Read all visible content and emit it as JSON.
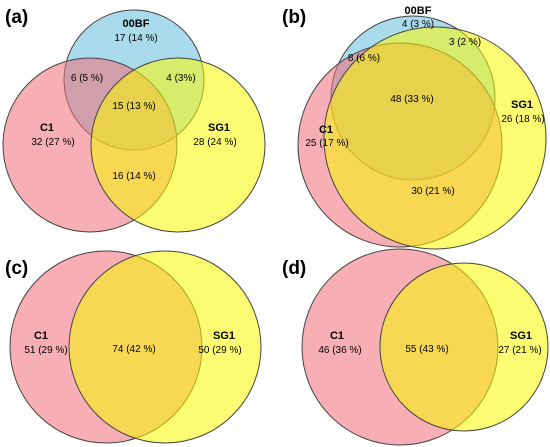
{
  "colors": {
    "00BF": "#8ecfe6",
    "C1": "#f06e78",
    "SG1": "#fafa00",
    "outline": "#444444"
  },
  "panels": [
    {
      "letter": "(a)",
      "sets": [
        {
          "name": "00BF",
          "value": "17 (14 %)"
        },
        {
          "name": "C1",
          "value": "32 (27 %)"
        },
        {
          "name": "SG1",
          "value": "28 (24 %)"
        }
      ],
      "overlaps": [
        {
          "sets": "00BF & C1",
          "value": "6 (5 %)"
        },
        {
          "sets": "00BF & SG1",
          "value": "4 (3%)"
        },
        {
          "sets": "00BF & C1 & SG1",
          "value": "15 (13 %)"
        },
        {
          "sets": "C1 & SG1",
          "value": "16 (14 %)"
        }
      ]
    },
    {
      "letter": "(b)",
      "sets": [
        {
          "name": "00BF",
          "value": "4 (3 %)"
        },
        {
          "name": "C1",
          "value": "25 (17 %)"
        },
        {
          "name": "SG1",
          "value": "26 (18 %)"
        }
      ],
      "overlaps": [
        {
          "sets": "00BF & C1",
          "value": "8 (6 %)"
        },
        {
          "sets": "00BF & SG1",
          "value": "3 (2 %)"
        },
        {
          "sets": "00BF & C1 & SG1",
          "value": "48 (33 %)"
        },
        {
          "sets": "C1 & SG1",
          "value": "30 (21 %)"
        }
      ]
    },
    {
      "letter": "(c)",
      "sets": [
        {
          "name": "C1",
          "value": "51 (29 %)"
        },
        {
          "name": "SG1",
          "value": "50 (29 %)"
        }
      ],
      "overlaps": [
        {
          "sets": "C1 & SG1",
          "value": "74 (42 %)"
        }
      ]
    },
    {
      "letter": "(d)",
      "sets": [
        {
          "name": "C1",
          "value": "46 (36 %)"
        },
        {
          "name": "SG1",
          "value": "27 (21 %)"
        }
      ],
      "overlaps": [
        {
          "sets": "C1 & SG1",
          "value": "55 (43 %)"
        }
      ]
    }
  ]
}
